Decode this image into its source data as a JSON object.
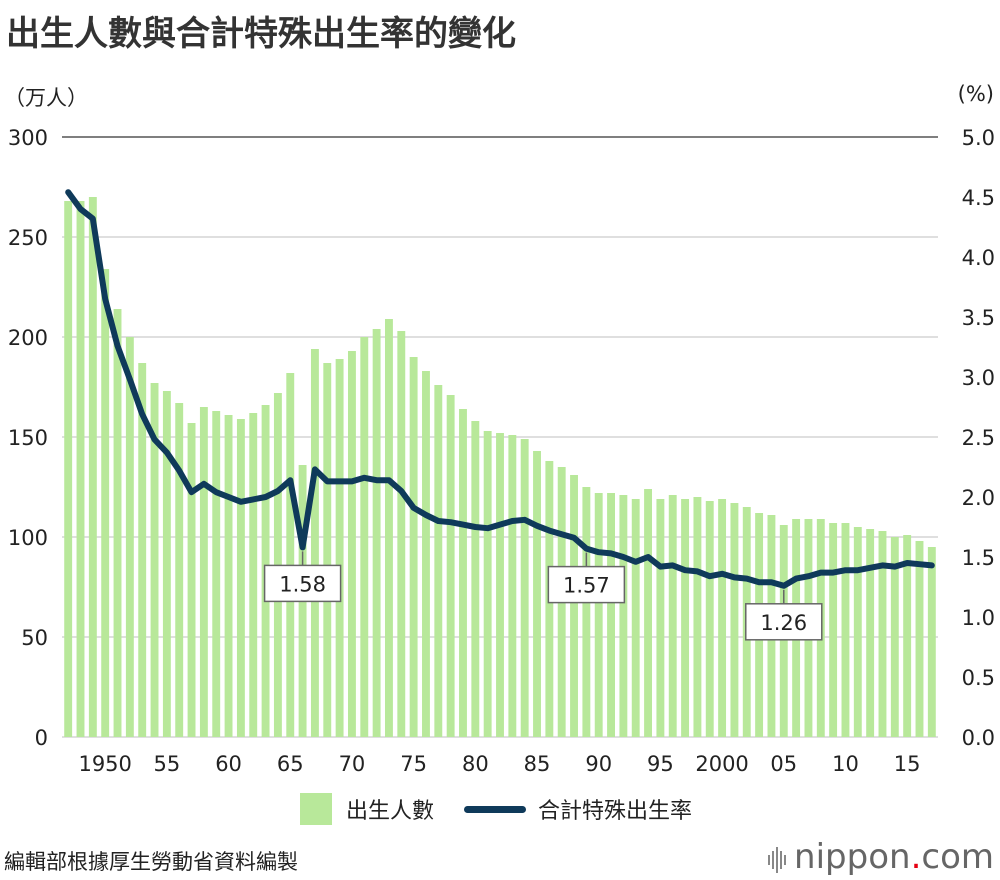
{
  "title": "出生人數與合計特殊出生率的變化",
  "left_unit": "（万人）",
  "right_unit": "(%)",
  "source": "編輯部根據厚生勞動省資料編製",
  "brand": {
    "name": "nippon",
    "dot": ".",
    "suffix": "com"
  },
  "colors": {
    "bar": "#b8e89a",
    "line": "#0f3a5a",
    "grid": "#cccccc"
  },
  "chart_data": {
    "type": "bar",
    "years": [
      1947,
      1948,
      1949,
      1950,
      1951,
      1952,
      1953,
      1954,
      1955,
      1956,
      1957,
      1958,
      1959,
      1960,
      1961,
      1962,
      1963,
      1964,
      1965,
      1966,
      1967,
      1968,
      1969,
      1970,
      1971,
      1972,
      1973,
      1974,
      1975,
      1976,
      1977,
      1978,
      1979,
      1980,
      1981,
      1982,
      1983,
      1984,
      1985,
      1986,
      1987,
      1988,
      1989,
      1990,
      1991,
      1992,
      1993,
      1994,
      1995,
      1996,
      1997,
      1998,
      1999,
      2000,
      2001,
      2002,
      2003,
      2004,
      2005,
      2006,
      2007,
      2008,
      2009,
      2010,
      2011,
      2012,
      2013,
      2014,
      2015,
      2016,
      2017
    ],
    "x_tick_labels": [
      {
        "year": 1950,
        "label": "1950"
      },
      {
        "year": 1955,
        "label": "55"
      },
      {
        "year": 1960,
        "label": "60"
      },
      {
        "year": 1965,
        "label": "65"
      },
      {
        "year": 1970,
        "label": "70"
      },
      {
        "year": 1975,
        "label": "75"
      },
      {
        "year": 1980,
        "label": "80"
      },
      {
        "year": 1985,
        "label": "85"
      },
      {
        "year": 1990,
        "label": "90"
      },
      {
        "year": 1995,
        "label": "95"
      },
      {
        "year": 2000,
        "label": "2000"
      },
      {
        "year": 2005,
        "label": "05"
      },
      {
        "year": 2010,
        "label": "10"
      },
      {
        "year": 2015,
        "label": "15"
      }
    ],
    "left_axis": {
      "ylim": [
        0,
        300
      ],
      "ticks": [
        "0",
        "50",
        "100",
        "150",
        "200",
        "250",
        "300"
      ]
    },
    "right_axis": {
      "ylim": [
        0,
        5
      ],
      "ticks": [
        "0.0",
        "0.5",
        "1.0",
        "1.5",
        "2.0",
        "2.5",
        "3.0",
        "3.5",
        "4.0",
        "4.5",
        "5.0"
      ]
    },
    "series": [
      {
        "name": "出生人數",
        "type": "bar",
        "axis": "left",
        "values": [
          268,
          268,
          270,
          234,
          214,
          200,
          187,
          177,
          173,
          167,
          157,
          165,
          163,
          161,
          159,
          162,
          166,
          172,
          182,
          136,
          194,
          187,
          189,
          193,
          200,
          204,
          209,
          203,
          190,
          183,
          176,
          171,
          164,
          158,
          153,
          152,
          151,
          149,
          143,
          138,
          135,
          131,
          125,
          122,
          122,
          121,
          119,
          124,
          119,
          121,
          119,
          120,
          118,
          119,
          117,
          115,
          112,
          111,
          106,
          109,
          109,
          109,
          107,
          107,
          105,
          104,
          103,
          100,
          101,
          98,
          95
        ]
      },
      {
        "name": "合計特殊出生率",
        "type": "line",
        "axis": "right",
        "values": [
          4.54,
          4.4,
          4.32,
          3.65,
          3.26,
          2.98,
          2.69,
          2.48,
          2.37,
          2.22,
          2.04,
          2.11,
          2.04,
          2.0,
          1.96,
          1.98,
          2.0,
          2.05,
          2.14,
          1.58,
          2.23,
          2.13,
          2.13,
          2.13,
          2.16,
          2.14,
          2.14,
          2.05,
          1.91,
          1.85,
          1.8,
          1.79,
          1.77,
          1.75,
          1.74,
          1.77,
          1.8,
          1.81,
          1.76,
          1.72,
          1.69,
          1.66,
          1.57,
          1.54,
          1.53,
          1.5,
          1.46,
          1.5,
          1.42,
          1.43,
          1.39,
          1.38,
          1.34,
          1.36,
          1.33,
          1.32,
          1.29,
          1.29,
          1.26,
          1.32,
          1.34,
          1.37,
          1.37,
          1.39,
          1.39,
          1.41,
          1.43,
          1.42,
          1.45,
          1.44,
          1.43
        ]
      }
    ],
    "annotations": [
      {
        "year": 1966,
        "label": "1.58"
      },
      {
        "year": 1989,
        "label": "1.57"
      },
      {
        "year": 2005,
        "label": "1.26"
      }
    ],
    "legend_position": "bottom-center"
  }
}
